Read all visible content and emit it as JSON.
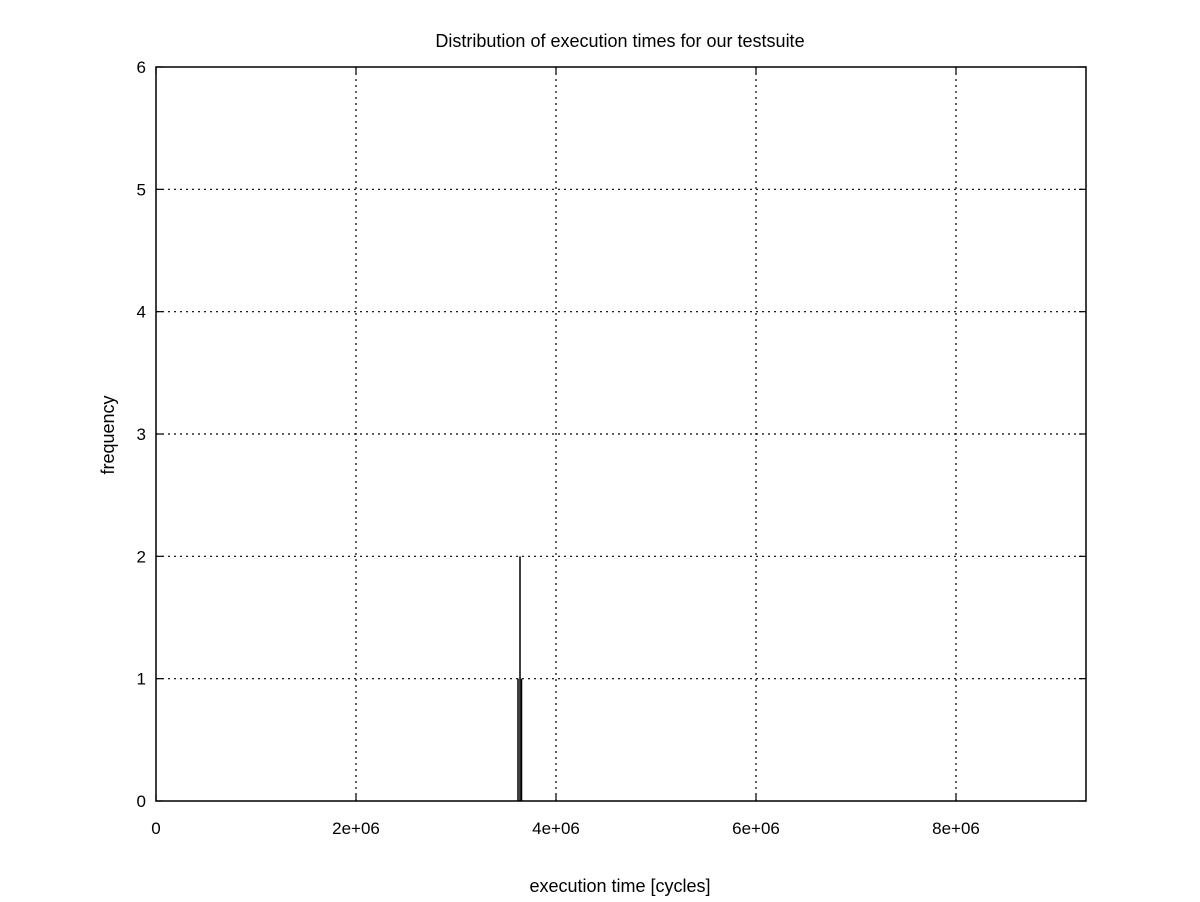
{
  "chart_data": {
    "type": "bar",
    "title": "Distribution of execution times for our testsuite",
    "xlabel": "execution time [cycles]",
    "ylabel": "frequency",
    "xlim": [
      0,
      9300000
    ],
    "ylim": [
      0,
      6
    ],
    "x_ticks": [
      0,
      2000000,
      4000000,
      6000000,
      8000000
    ],
    "x_tick_labels": [
      "0",
      "2e+06",
      "4e+06",
      "6e+06",
      "8e+06"
    ],
    "y_ticks": [
      0,
      1,
      2,
      3,
      4,
      5,
      6
    ],
    "y_tick_labels": [
      "0",
      "1",
      "2",
      "3",
      "4",
      "5",
      "6"
    ],
    "grid": true,
    "bars": [
      {
        "x": 3620000,
        "value": 1
      },
      {
        "x": 3640000,
        "value": 2
      },
      {
        "x": 3655000,
        "value": 1
      }
    ]
  }
}
